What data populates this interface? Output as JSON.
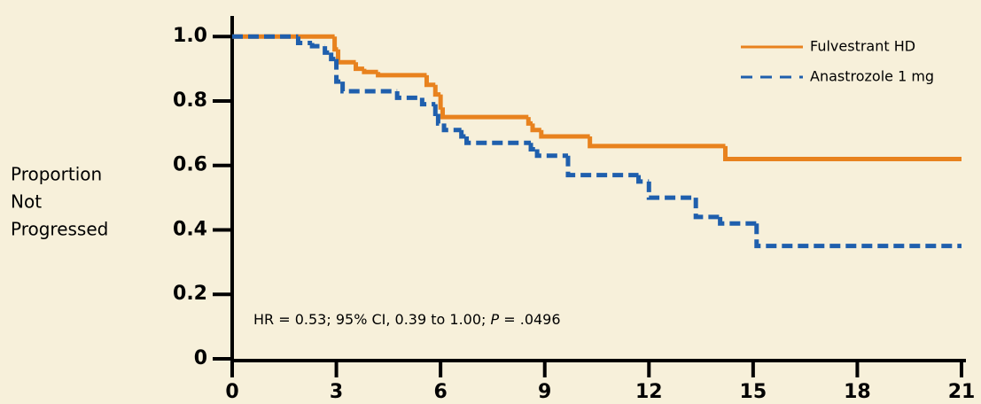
{
  "chart_data": {
    "type": "step",
    "ylabel": [
      "Proportion",
      "Not",
      "Progressed"
    ],
    "annotation": {
      "before": "HR = 0.53; 95% CI, 0.39 to 1.00; ",
      "italic": "P",
      "after": " = .0496"
    },
    "xlim": [
      0,
      21
    ],
    "ylim": [
      0,
      1.05
    ],
    "xticks": [
      0,
      3,
      6,
      9,
      12,
      15,
      18,
      21
    ],
    "yticks": [
      0,
      0.2,
      0.4,
      0.6,
      0.8,
      {
        "value": 1,
        "label": "1.0"
      }
    ],
    "legend": "upper right",
    "series": [
      {
        "name": "Fulvestrant HD",
        "color": "#e8821e",
        "dash": false,
        "x": [
          0,
          2.95,
          3.05,
          3.56,
          3.8,
          4.2,
          5.6,
          5.85,
          6.0,
          6.06,
          8.53,
          8.65,
          8.9,
          10.3,
          14.2,
          21
        ],
        "y": [
          1,
          0.96,
          0.92,
          0.9,
          0.89,
          0.88,
          0.85,
          0.82,
          0.78,
          0.75,
          0.73,
          0.71,
          0.69,
          0.66,
          0.62,
          0.62
        ]
      },
      {
        "name": "Anastrozole 1 mg",
        "color": "#1f5fad",
        "dash": true,
        "x": [
          0,
          1.9,
          2.3,
          2.67,
          2.85,
          3.0,
          3.18,
          4.75,
          5.47,
          5.85,
          5.93,
          6.1,
          6.6,
          6.75,
          8.6,
          8.78,
          9.67,
          11.7,
          12.0,
          13.35,
          14.05,
          15.1,
          21
        ],
        "y": [
          1,
          0.98,
          0.97,
          0.95,
          0.93,
          0.86,
          0.83,
          0.81,
          0.79,
          0.76,
          0.73,
          0.71,
          0.69,
          0.67,
          0.65,
          0.63,
          0.57,
          0.55,
          0.5,
          0.44,
          0.42,
          0.35,
          0.35
        ]
      }
    ]
  }
}
